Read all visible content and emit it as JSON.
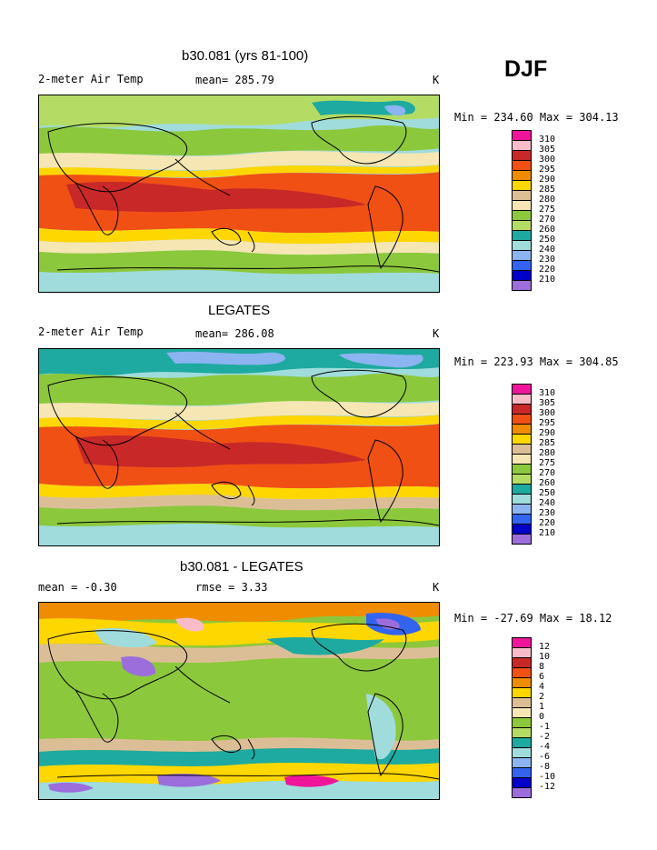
{
  "season": "DJF",
  "palette_colors": [
    "#f0149b",
    "#f8bcc8",
    "#c82828",
    "#f05014",
    "#f08c00",
    "#ffd700",
    "#dcbe96",
    "#f5e6b4",
    "#8cc83c",
    "#b4dc64",
    "#1eaaa0",
    "#a0dcdc",
    "#8cb4f0",
    "#3264f0",
    "#0000c8",
    "#9b6edc"
  ],
  "panels": [
    {
      "title": "b30.081 (yrs 81-100)",
      "left_label": "2-meter Air Temp",
      "center_label": "mean= 285.79",
      "right_label": "K",
      "minmax": "Min = 234.60 Max = 304.13",
      "levels": [
        "310",
        "305",
        "300",
        "295",
        "290",
        "285",
        "280",
        "275",
        "270",
        "260",
        "250",
        "240",
        "230",
        "220",
        "210"
      ]
    },
    {
      "title": "LEGATES",
      "left_label": "2-meter Air Temp",
      "center_label": "mean= 286.08",
      "right_label": "K",
      "minmax": "Min = 223.93 Max = 304.85",
      "levels": [
        "310",
        "305",
        "300",
        "295",
        "290",
        "285",
        "280",
        "275",
        "270",
        "260",
        "250",
        "240",
        "230",
        "220",
        "210"
      ]
    },
    {
      "title": "b30.081 - LEGATES",
      "left_label": "mean =   -0.30",
      "center_label": "rmse =    3.33",
      "right_label": "K",
      "minmax": "Min = -27.69 Max =  18.12",
      "levels": [
        "12",
        "10",
        "8",
        "6",
        "4",
        "2",
        "1",
        "0",
        "-1",
        "-2",
        "-4",
        "-6",
        "-8",
        "-10",
        "-12"
      ]
    }
  ]
}
